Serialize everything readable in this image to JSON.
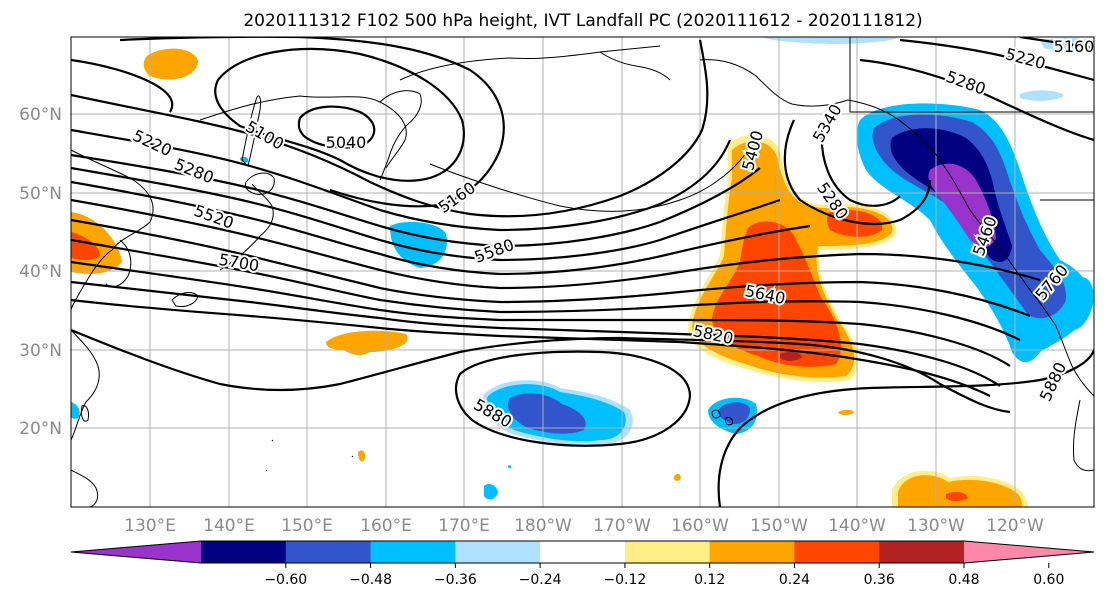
{
  "title": "2020111312 F102 500 hPa height, IVT Landfall PC (2020111612 - 2020111812)",
  "map": {
    "lat_labels": [
      "60°N",
      "50°N",
      "40°N",
      "30°N",
      "20°N"
    ],
    "lon_labels": [
      "130°E",
      "140°E",
      "150°E",
      "160°E",
      "170°E",
      "180°W",
      "170°W",
      "160°W",
      "150°W",
      "140°W",
      "130°W",
      "120°W"
    ],
    "height_contour_labels": [
      "5220",
      "5280",
      "5100",
      "5040",
      "5160",
      "5520",
      "5700",
      "5580",
      "5640",
      "5820",
      "5880",
      "5400",
      "5340",
      "5280",
      "5280",
      "5220",
      "5160",
      "5460",
      "5760",
      "5880"
    ],
    "colors": {
      "land_outline": "#000000",
      "grid": "#b0b0b0",
      "contour": "#000000"
    }
  },
  "colorbar": {
    "tick_labels": [
      "−0.60",
      "−0.48",
      "−0.36",
      "−0.24",
      "−0.12",
      "0.12",
      "0.24",
      "0.36",
      "0.48",
      "0.60"
    ],
    "colors": [
      "#9933cc",
      "#000080",
      "#3355cc",
      "#00bfff",
      "#b0e0ff",
      "#ffffff",
      "#ffee88",
      "#ffa500",
      "#ff4500",
      "#b22222",
      "#ff88aa"
    ]
  }
}
